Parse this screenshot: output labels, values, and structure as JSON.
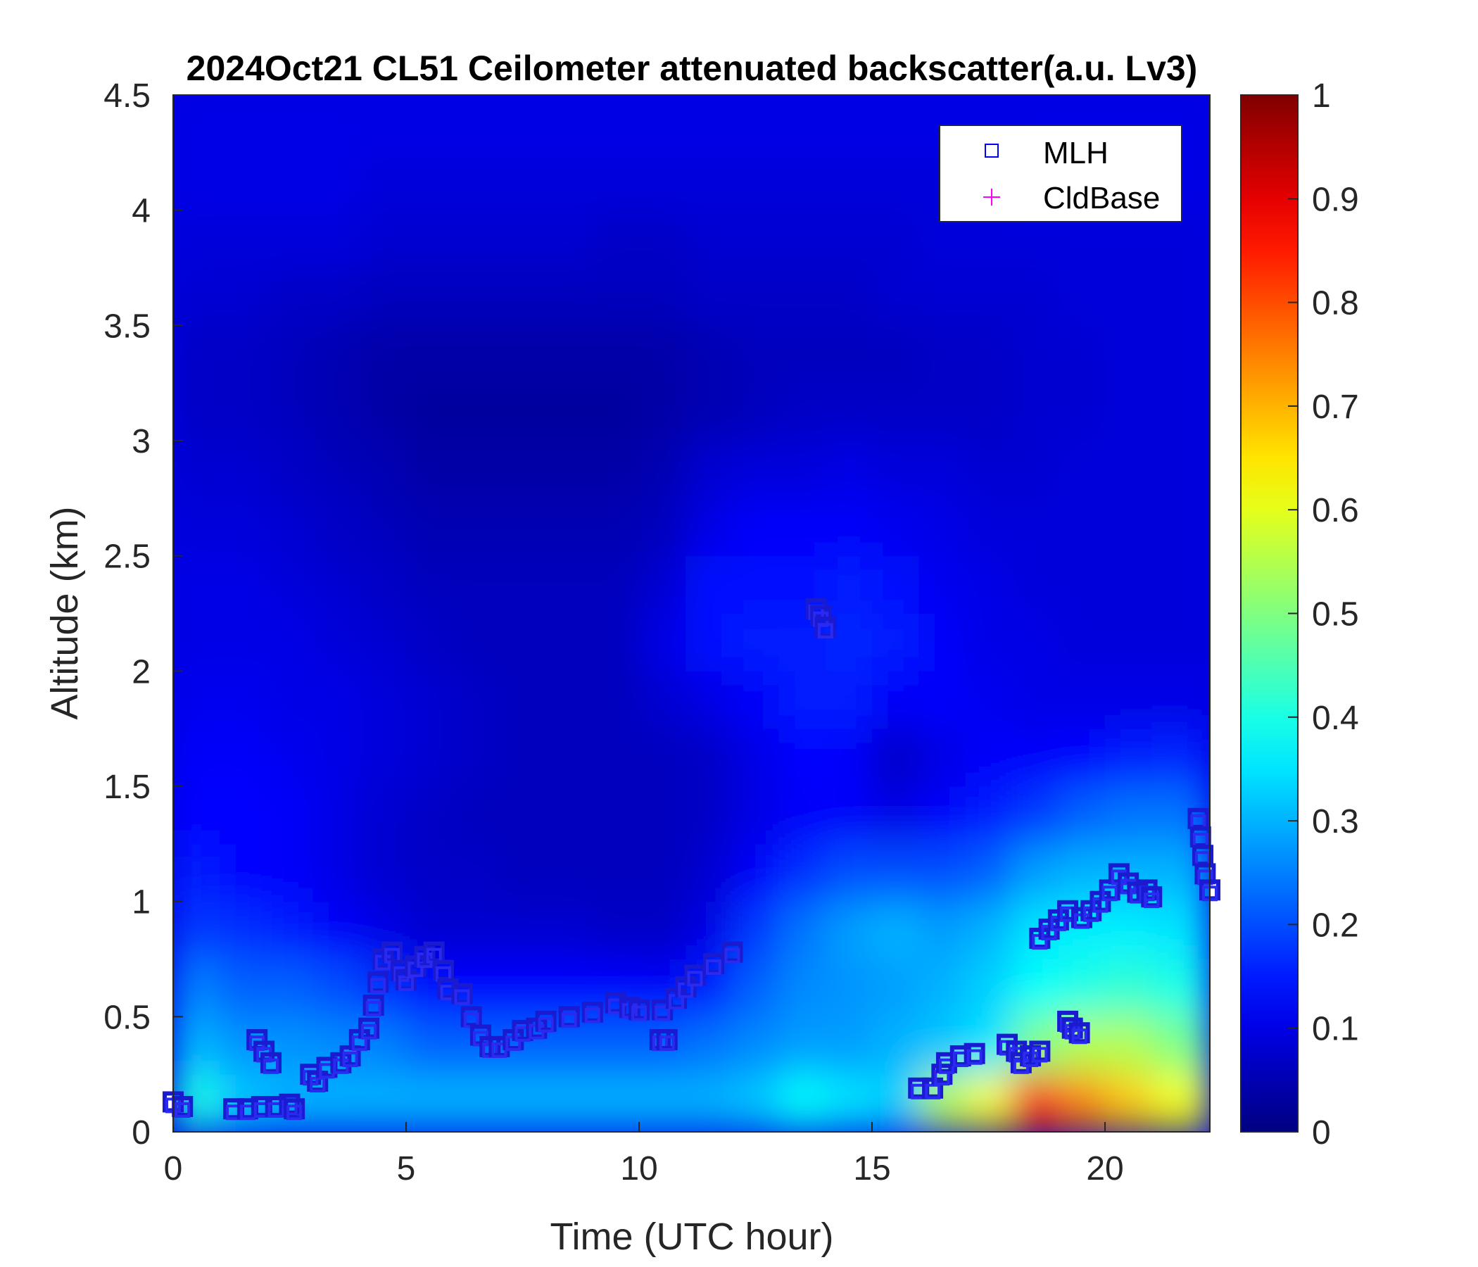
{
  "chart_data": {
    "type": "heatmap",
    "title": "2024Oct21 CL51 Ceilometer attenuated backscatter(a.u. Lv3)",
    "xlabel": "Time (UTC hour)",
    "ylabel": "Altitude (km)",
    "xlim": [
      0,
      22.25
    ],
    "ylim": [
      0,
      4.5
    ],
    "xticks": [
      "0",
      "5",
      "10",
      "15",
      "20"
    ],
    "yticks": [
      "0",
      "0.5",
      "1",
      "1.5",
      "2",
      "2.5",
      "3",
      "3.5",
      "4",
      "4.5"
    ],
    "colorbar": {
      "colormap": "jet",
      "clim": [
        0,
        1
      ],
      "ticks": [
        "0",
        "0.1",
        "0.2",
        "0.3",
        "0.4",
        "0.5",
        "0.6",
        "0.7",
        "0.8",
        "0.9",
        "1"
      ]
    },
    "grid": {
      "time_start_hours": [
        0,
        1,
        2,
        3,
        4,
        5,
        6,
        7,
        8,
        9,
        10,
        11,
        12,
        13,
        14,
        15,
        16,
        17,
        18,
        19,
        20,
        21,
        22
      ],
      "altitude_bottom_km": [
        0,
        0.25,
        0.5,
        0.75,
        1,
        1.25,
        1.5,
        1.75,
        2,
        2.25,
        2.5,
        2.75,
        3,
        3.25,
        3.5,
        3.75,
        4,
        4.25
      ],
      "values": [
        [
          0.4,
          0.32,
          0.3,
          0.3,
          0.3,
          0.3,
          0.3,
          0.3,
          0.3,
          0.3,
          0.3,
          0.3,
          0.32,
          0.38,
          0.35,
          0.33,
          0.55,
          0.62,
          0.85,
          0.75,
          0.68,
          0.62,
          0.6
        ],
        [
          0.3,
          0.27,
          0.27,
          0.26,
          0.25,
          0.22,
          0.22,
          0.22,
          0.22,
          0.22,
          0.22,
          0.24,
          0.26,
          0.28,
          0.28,
          0.3,
          0.32,
          0.35,
          0.5,
          0.55,
          0.55,
          0.5,
          0.45
        ],
        [
          0.25,
          0.22,
          0.22,
          0.2,
          0.17,
          0.14,
          0.13,
          0.13,
          0.13,
          0.13,
          0.12,
          0.15,
          0.22,
          0.26,
          0.27,
          0.28,
          0.3,
          0.33,
          0.38,
          0.4,
          0.42,
          0.4,
          0.38
        ],
        [
          0.18,
          0.17,
          0.15,
          0.12,
          0.1,
          0.08,
          0.08,
          0.08,
          0.08,
          0.07,
          0.07,
          0.1,
          0.18,
          0.24,
          0.28,
          0.3,
          0.28,
          0.3,
          0.35,
          0.36,
          0.36,
          0.35,
          0.33
        ],
        [
          0.15,
          0.13,
          0.12,
          0.1,
          0.08,
          0.07,
          0.07,
          0.06,
          0.06,
          0.06,
          0.06,
          0.08,
          0.12,
          0.17,
          0.2,
          0.2,
          0.2,
          0.22,
          0.28,
          0.3,
          0.3,
          0.3,
          0.28
        ],
        [
          0.13,
          0.13,
          0.12,
          0.1,
          0.08,
          0.07,
          0.06,
          0.06,
          0.06,
          0.06,
          0.06,
          0.07,
          0.1,
          0.12,
          0.12,
          0.1,
          0.12,
          0.15,
          0.18,
          0.22,
          0.24,
          0.24,
          0.22
        ],
        [
          0.12,
          0.12,
          0.11,
          0.1,
          0.09,
          0.08,
          0.07,
          0.06,
          0.06,
          0.06,
          0.06,
          0.07,
          0.1,
          0.13,
          0.12,
          0.07,
          0.1,
          0.12,
          0.12,
          0.13,
          0.15,
          0.16,
          0.15
        ],
        [
          0.11,
          0.11,
          0.1,
          0.1,
          0.09,
          0.08,
          0.07,
          0.06,
          0.06,
          0.06,
          0.08,
          0.1,
          0.12,
          0.15,
          0.15,
          0.12,
          0.12,
          0.11,
          0.1,
          0.1,
          0.1,
          0.1,
          0.1
        ],
        [
          0.1,
          0.1,
          0.1,
          0.09,
          0.08,
          0.07,
          0.06,
          0.06,
          0.06,
          0.06,
          0.1,
          0.14,
          0.15,
          0.15,
          0.16,
          0.15,
          0.12,
          0.1,
          0.1,
          0.09,
          0.09,
          0.09,
          0.09
        ],
        [
          0.1,
          0.1,
          0.09,
          0.08,
          0.07,
          0.06,
          0.06,
          0.06,
          0.06,
          0.06,
          0.08,
          0.14,
          0.14,
          0.14,
          0.15,
          0.14,
          0.11,
          0.1,
          0.09,
          0.09,
          0.09,
          0.09,
          0.09
        ],
        [
          0.09,
          0.09,
          0.08,
          0.07,
          0.06,
          0.05,
          0.05,
          0.05,
          0.05,
          0.05,
          0.06,
          0.1,
          0.12,
          0.12,
          0.12,
          0.11,
          0.1,
          0.09,
          0.09,
          0.09,
          0.09,
          0.09,
          0.09
        ],
        [
          0.08,
          0.08,
          0.07,
          0.06,
          0.05,
          0.04,
          0.04,
          0.04,
          0.04,
          0.04,
          0.05,
          0.08,
          0.09,
          0.09,
          0.1,
          0.09,
          0.09,
          0.08,
          0.08,
          0.09,
          0.09,
          0.09,
          0.09
        ],
        [
          0.07,
          0.07,
          0.06,
          0.05,
          0.04,
          0.03,
          0.03,
          0.03,
          0.03,
          0.03,
          0.04,
          0.05,
          0.06,
          0.07,
          0.07,
          0.07,
          0.07,
          0.07,
          0.08,
          0.08,
          0.09,
          0.09,
          0.09
        ],
        [
          0.07,
          0.07,
          0.06,
          0.05,
          0.04,
          0.04,
          0.04,
          0.04,
          0.04,
          0.04,
          0.04,
          0.05,
          0.06,
          0.06,
          0.06,
          0.06,
          0.07,
          0.07,
          0.08,
          0.08,
          0.09,
          0.09,
          0.09
        ],
        [
          0.08,
          0.08,
          0.07,
          0.07,
          0.06,
          0.06,
          0.06,
          0.06,
          0.06,
          0.06,
          0.06,
          0.07,
          0.07,
          0.07,
          0.07,
          0.08,
          0.08,
          0.08,
          0.08,
          0.09,
          0.09,
          0.09,
          0.09
        ],
        [
          0.09,
          0.09,
          0.09,
          0.09,
          0.08,
          0.08,
          0.08,
          0.08,
          0.08,
          0.07,
          0.07,
          0.08,
          0.08,
          0.08,
          0.08,
          0.08,
          0.09,
          0.09,
          0.09,
          0.09,
          0.09,
          0.09,
          0.09
        ],
        [
          0.1,
          0.1,
          0.1,
          0.1,
          0.09,
          0.09,
          0.09,
          0.09,
          0.09,
          0.09,
          0.09,
          0.09,
          0.09,
          0.09,
          0.09,
          0.09,
          0.09,
          0.09,
          0.1,
          0.1,
          0.1,
          0.1,
          0.1
        ],
        [
          0.1,
          0.1,
          0.1,
          0.1,
          0.1,
          0.1,
          0.1,
          0.1,
          0.1,
          0.1,
          0.1,
          0.1,
          0.1,
          0.1,
          0.1,
          0.1,
          0.1,
          0.1,
          0.1,
          0.1,
          0.1,
          0.1,
          0.1
        ]
      ]
    },
    "series": [
      {
        "name": "MLH",
        "marker": "square",
        "color": "#0000ff",
        "points": [
          [
            0,
            0.13
          ],
          [
            0.2,
            0.11
          ],
          [
            1.3,
            0.1
          ],
          [
            1.6,
            0.1
          ],
          [
            1.9,
            0.11
          ],
          [
            2.2,
            0.11
          ],
          [
            2.5,
            0.12
          ],
          [
            2.6,
            0.1
          ],
          [
            1.8,
            0.4
          ],
          [
            1.95,
            0.35
          ],
          [
            2.1,
            0.3
          ],
          [
            2.95,
            0.25
          ],
          [
            3.1,
            0.22
          ],
          [
            3.3,
            0.28
          ],
          [
            3.6,
            0.3
          ],
          [
            3.8,
            0.33
          ],
          [
            4.0,
            0.4
          ],
          [
            4.2,
            0.45
          ],
          [
            4.3,
            0.55
          ],
          [
            4.4,
            0.65
          ],
          [
            4.5,
            0.75
          ],
          [
            4.7,
            0.78
          ],
          [
            4.9,
            0.7
          ],
          [
            5.0,
            0.66
          ],
          [
            5.2,
            0.72
          ],
          [
            5.4,
            0.76
          ],
          [
            5.6,
            0.78
          ],
          [
            5.8,
            0.7
          ],
          [
            5.9,
            0.62
          ],
          [
            6.2,
            0.6
          ],
          [
            6.4,
            0.5
          ],
          [
            6.6,
            0.42
          ],
          [
            6.8,
            0.37
          ],
          [
            7.0,
            0.37
          ],
          [
            7.3,
            0.4
          ],
          [
            7.5,
            0.44
          ],
          [
            7.8,
            0.45
          ],
          [
            8.0,
            0.48
          ],
          [
            8.5,
            0.5
          ],
          [
            9.0,
            0.52
          ],
          [
            9.5,
            0.56
          ],
          [
            9.8,
            0.54
          ],
          [
            10.0,
            0.53
          ],
          [
            10.5,
            0.53
          ],
          [
            10.45,
            0.4
          ],
          [
            10.6,
            0.4
          ],
          [
            10.8,
            0.58
          ],
          [
            11.0,
            0.63
          ],
          [
            11.2,
            0.68
          ],
          [
            11.6,
            0.73
          ],
          [
            12.0,
            0.78
          ],
          [
            13.8,
            2.27
          ],
          [
            13.9,
            2.24
          ],
          [
            14.0,
            2.19
          ],
          [
            16.0,
            0.19
          ],
          [
            16.3,
            0.19
          ],
          [
            16.5,
            0.25
          ],
          [
            16.6,
            0.3
          ],
          [
            16.9,
            0.33
          ],
          [
            17.2,
            0.34
          ],
          [
            17.9,
            0.38
          ],
          [
            18.1,
            0.35
          ],
          [
            18.2,
            0.3
          ],
          [
            18.4,
            0.33
          ],
          [
            18.6,
            0.35
          ],
          [
            18.6,
            0.84
          ],
          [
            18.8,
            0.88
          ],
          [
            19.0,
            0.92
          ],
          [
            19.2,
            0.96
          ],
          [
            19.2,
            0.48
          ],
          [
            19.3,
            0.45
          ],
          [
            19.45,
            0.43
          ],
          [
            19.5,
            0.93
          ],
          [
            19.7,
            0.96
          ],
          [
            19.9,
            1.0
          ],
          [
            20.1,
            1.05
          ],
          [
            20.3,
            1.12
          ],
          [
            20.5,
            1.08
          ],
          [
            20.7,
            1.04
          ],
          [
            20.9,
            1.05
          ],
          [
            21.0,
            1.02
          ],
          [
            22.0,
            1.36
          ],
          [
            22.05,
            1.28
          ],
          [
            22.1,
            1.2
          ],
          [
            22.15,
            1.12
          ],
          [
            22.25,
            1.05
          ]
        ]
      },
      {
        "name": "CldBase",
        "marker": "plus",
        "color": "#ff00ff",
        "points": []
      }
    ],
    "legend": {
      "placement": "top-right",
      "entries": [
        "MLH",
        "CldBase"
      ]
    }
  }
}
